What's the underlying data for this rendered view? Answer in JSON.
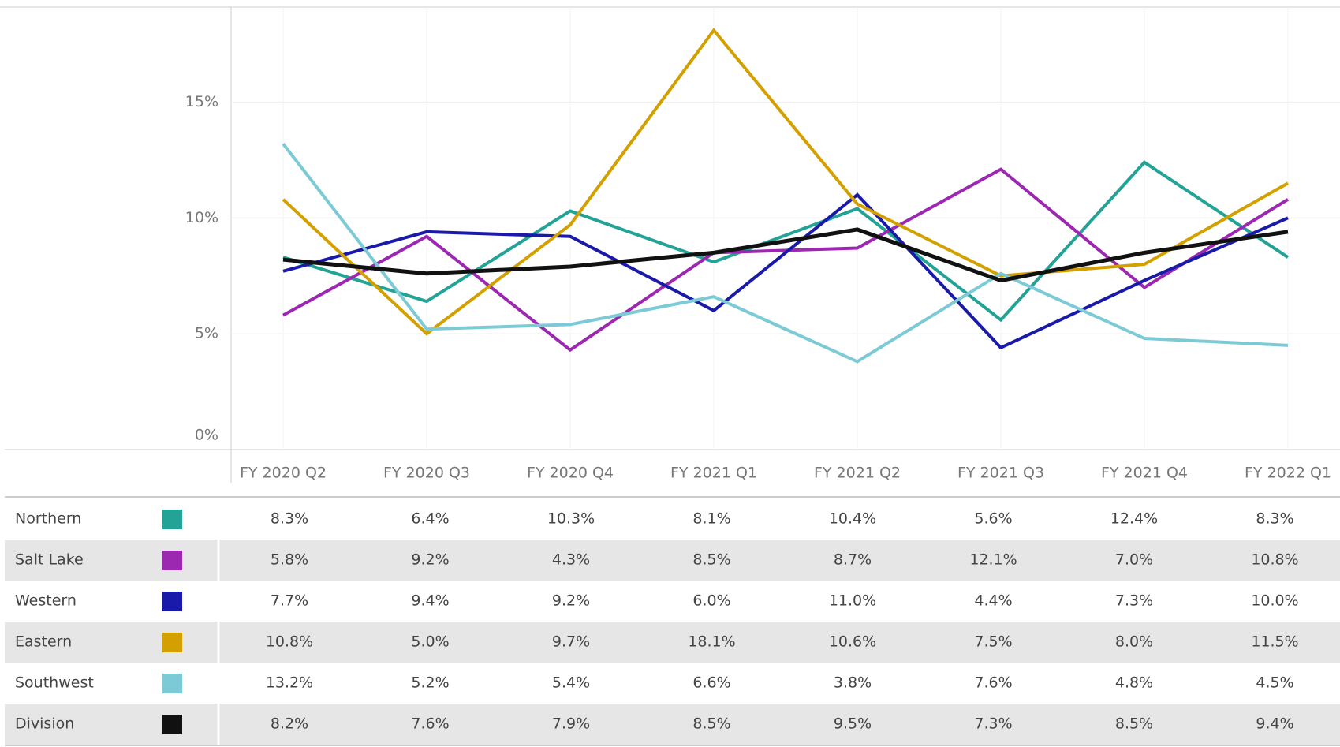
{
  "chart_data": {
    "type": "line",
    "categories": [
      "FY 2020 Q2",
      "FY 2020 Q3",
      "FY 2020 Q4",
      "FY 2021 Q1",
      "FY 2021 Q2",
      "FY 2021 Q3",
      "FY 2021 Q4",
      "FY 2022 Q1"
    ],
    "ylim": [
      0,
      19.1
    ],
    "yticks": [
      {
        "value": 0,
        "label": "0%"
      },
      {
        "value": 5,
        "label": "5%"
      },
      {
        "value": 10,
        "label": "10%"
      },
      {
        "value": 15,
        "label": "15%"
      }
    ],
    "grid": true,
    "series": [
      {
        "name": "Northern",
        "color": "#22a396",
        "values": [
          8.3,
          6.4,
          10.3,
          8.1,
          10.4,
          5.6,
          12.4,
          8.3
        ],
        "value_labels": [
          "8.3%",
          "6.4%",
          "10.3%",
          "8.1%",
          "10.4%",
          "5.6%",
          "12.4%",
          "8.3%"
        ]
      },
      {
        "name": "Salt Lake",
        "color": "#9c27b0",
        "values": [
          5.8,
          9.2,
          4.3,
          8.5,
          8.7,
          12.1,
          7.0,
          10.8
        ],
        "value_labels": [
          "5.8%",
          "9.2%",
          "4.3%",
          "8.5%",
          "8.7%",
          "12.1%",
          "7.0%",
          "10.8%"
        ]
      },
      {
        "name": "Western",
        "color": "#1a1aaa",
        "values": [
          7.7,
          9.4,
          9.2,
          6.0,
          11.0,
          4.4,
          7.3,
          10.0
        ],
        "value_labels": [
          "7.7%",
          "9.4%",
          "9.2%",
          "6.0%",
          "11.0%",
          "4.4%",
          "7.3%",
          "10.0%"
        ]
      },
      {
        "name": "Eastern",
        "color": "#d4a000",
        "values": [
          10.8,
          5.0,
          9.7,
          18.1,
          10.6,
          7.5,
          8.0,
          11.5
        ],
        "value_labels": [
          "10.8%",
          "5.0%",
          "9.7%",
          "18.1%",
          "10.6%",
          "7.5%",
          "8.0%",
          "11.5%"
        ]
      },
      {
        "name": "Southwest",
        "color": "#7ccad6",
        "values": [
          13.2,
          5.2,
          5.4,
          6.6,
          3.8,
          7.6,
          4.8,
          4.5
        ],
        "value_labels": [
          "13.2%",
          "5.2%",
          "5.4%",
          "6.6%",
          "3.8%",
          "7.6%",
          "4.8%",
          "4.5%"
        ]
      },
      {
        "name": "Division",
        "color": "#111111",
        "values": [
          8.2,
          7.6,
          7.9,
          8.5,
          9.5,
          7.3,
          8.5,
          9.4
        ],
        "value_labels": [
          "8.2%",
          "7.6%",
          "7.9%",
          "8.5%",
          "9.5%",
          "7.3%",
          "8.5%",
          "9.4%"
        ]
      }
    ]
  }
}
